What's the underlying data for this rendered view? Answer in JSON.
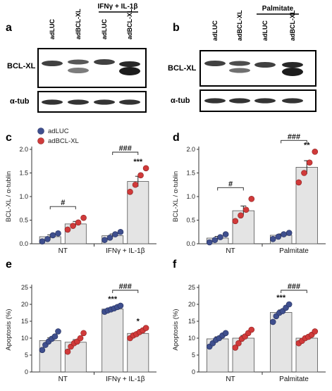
{
  "colors": {
    "adLUC": "#3f4f8e",
    "adBCLXL": "#d03a3a",
    "bar_fill": "#e4e4e4",
    "bar_stroke": "#555555"
  },
  "blots": [
    {
      "panel": "a",
      "lanes": [
        "adLUC",
        "adBCL-XL",
        "adLUC",
        "adBCL-XL"
      ],
      "treatment": "IFNγ + IL-1β",
      "rows": [
        "BCL-XL",
        "α-tub"
      ]
    },
    {
      "panel": "b",
      "lanes": [
        "adLUC",
        "adBCL-XL",
        "adLUC",
        "adBCL-XL"
      ],
      "treatment": "Palmitate",
      "rows": [
        "BCL-XL",
        "α-tub"
      ]
    }
  ],
  "legend": {
    "items": [
      "adLUC",
      "adBCL-XL"
    ]
  },
  "chart_data": [
    {
      "panel": "c",
      "type": "bar",
      "ylabel": "BCL-XL / α-tublin",
      "ylim": [
        0,
        2.0
      ],
      "yticks": [
        "0.0",
        "0.5",
        "1.0",
        "1.5",
        "2.0"
      ],
      "groups": [
        "NT",
        "IFNγ + IL-1β"
      ],
      "series": [
        {
          "name": "adLUC",
          "groups_values": [
            0.15,
            0.17
          ],
          "points": [
            [
              0.05,
              0.1,
              0.18,
              0.22
            ],
            [
              0.08,
              0.13,
              0.2,
              0.25
            ]
          ]
        },
        {
          "name": "adBCL-XL",
          "groups_values": [
            0.42,
            1.32
          ],
          "points": [
            [
              0.3,
              0.38,
              0.45,
              0.55
            ],
            [
              1.1,
              1.25,
              1.45,
              1.6
            ]
          ]
        }
      ],
      "significance": [
        {
          "label": "#",
          "bracket": [
            0,
            1
          ],
          "group": 0
        },
        {
          "label": "###",
          "bracket": [
            0,
            1
          ],
          "group": 1
        },
        {
          "label": "***",
          "group": 1,
          "series": 1
        }
      ]
    },
    {
      "panel": "d",
      "type": "bar",
      "ylabel": "BCL-XL / α-tublin",
      "ylim": [
        0,
        2.0
      ],
      "yticks": [
        "0.0",
        "0.5",
        "1.0",
        "1.5",
        "2.0"
      ],
      "groups": [
        "NT",
        "Palmitate"
      ],
      "series": [
        {
          "name": "adLUC",
          "groups_values": [
            0.12,
            0.18
          ],
          "points": [
            [
              0.03,
              0.08,
              0.14,
              0.2
            ],
            [
              0.1,
              0.15,
              0.2,
              0.23
            ]
          ]
        },
        {
          "name": "adBCL-XL",
          "groups_values": [
            0.7,
            1.62
          ],
          "points": [
            [
              0.48,
              0.6,
              0.72,
              0.95
            ],
            [
              1.3,
              1.5,
              1.72,
              1.95
            ]
          ]
        }
      ],
      "significance": [
        {
          "label": "#",
          "bracket": [
            0,
            1
          ],
          "group": 0
        },
        {
          "label": "###",
          "bracket": [
            0,
            1
          ],
          "group": 1
        },
        {
          "label": "**",
          "group": 1,
          "series": 1
        }
      ]
    },
    {
      "panel": "e",
      "type": "bar",
      "ylabel": "Apoptosis (%)",
      "ylim": [
        0,
        25
      ],
      "yticks": [
        "0",
        "5",
        "10",
        "15",
        "20",
        "25"
      ],
      "groups": [
        "NT",
        "IFNγ + IL-1β"
      ],
      "series": [
        {
          "name": "adLUC",
          "groups_values": [
            9.3,
            18.6
          ],
          "points": [
            [
              6.5,
              8,
              9,
              9.8,
              10.5,
              12
            ],
            [
              17.8,
              18.2,
              18.5,
              18.8,
              19.2,
              19.6
            ]
          ]
        },
        {
          "name": "adBCL-XL",
          "groups_values": [
            8.8,
            11.4
          ],
          "points": [
            [
              6,
              7.5,
              8.5,
              9,
              10,
              11.5
            ],
            [
              10,
              10.8,
              11.2,
              11.8,
              12.3,
              13
            ]
          ]
        }
      ],
      "significance": [
        {
          "label": "###",
          "bracket": [
            0,
            1
          ],
          "group": 1
        },
        {
          "label": "***",
          "group": 1,
          "series": 0
        },
        {
          "label": "*",
          "group": 1,
          "series": 1
        }
      ]
    },
    {
      "panel": "f",
      "type": "bar",
      "ylabel": "Apoptosis (%)",
      "ylim": [
        0,
        25
      ],
      "yticks": [
        "0",
        "5",
        "10",
        "15",
        "20",
        "25"
      ],
      "groups": [
        "NT",
        "Palmitate"
      ],
      "series": [
        {
          "name": "adLUC",
          "groups_values": [
            9.8,
            17.6
          ],
          "points": [
            [
              7.5,
              8.5,
              9.5,
              10,
              10.8,
              11.5
            ],
            [
              14.8,
              16.5,
              17.5,
              18,
              19,
              20
            ]
          ]
        },
        {
          "name": "adBCL-XL",
          "groups_values": [
            10.0,
            10.0
          ],
          "points": [
            [
              7.2,
              8.5,
              9.8,
              10.5,
              11.5,
              12.5
            ],
            [
              8.5,
              9.2,
              10,
              10.4,
              11,
              12
            ]
          ]
        }
      ],
      "significance": [
        {
          "label": "###",
          "bracket": [
            0,
            1
          ],
          "group": 1
        },
        {
          "label": "***",
          "group": 1,
          "series": 0
        }
      ]
    }
  ]
}
